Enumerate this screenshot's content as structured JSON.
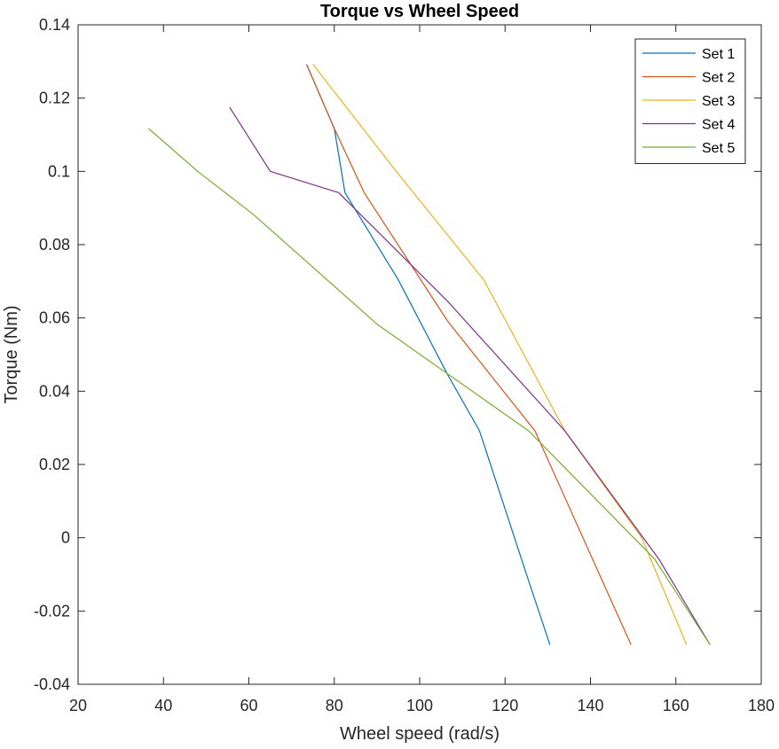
{
  "chart_data": {
    "type": "line",
    "title": "Torque vs Wheel Speed",
    "xlabel": "Wheel speed (rad/s)",
    "ylabel": "Torque (Nm)",
    "xlim": [
      20,
      180
    ],
    "ylim": [
      -0.04,
      0.14
    ],
    "xticks": [
      20,
      40,
      60,
      80,
      100,
      120,
      140,
      160,
      180
    ],
    "yticks": [
      -0.04,
      -0.02,
      0,
      0.02,
      0.04,
      0.06,
      0.08,
      0.1,
      0.12,
      0.14
    ],
    "xtick_labels": [
      "20",
      "40",
      "60",
      "80",
      "100",
      "120",
      "140",
      "160",
      "180"
    ],
    "ytick_labels": [
      "-0.04",
      "-0.02",
      "0",
      "0.02",
      "0.04",
      "0.06",
      "0.08",
      "0.1",
      "0.12",
      "0.14"
    ],
    "grid": false,
    "legend_position": "top-right",
    "series": [
      {
        "name": "Set 1",
        "color": "#0072BD",
        "x": [
          73.5,
          80,
          82.5,
          95,
          106.5,
          114,
          125.5,
          130.5
        ],
        "y": [
          0.1292,
          0.1117,
          0.0942,
          0.0704,
          0.0446,
          0.0292,
          -0.0117,
          -0.0292
        ]
      },
      {
        "name": "Set 2",
        "color": "#D95319",
        "x": [
          73.5,
          80,
          87,
          106.5,
          127,
          149.5
        ],
        "y": [
          0.1292,
          0.1117,
          0.0942,
          0.0592,
          0.0292,
          -0.0292
        ]
      },
      {
        "name": "Set 3",
        "color": "#EDB120",
        "x": [
          75,
          94.5,
          115,
          134,
          152,
          162.5
        ],
        "y": [
          0.1292,
          0.1,
          0.0704,
          0.0292,
          0.0,
          -0.0292
        ]
      },
      {
        "name": "Set 4",
        "color": "#7E2F8E",
        "x": [
          55.5,
          65,
          81,
          106.5,
          134,
          156,
          168
        ],
        "y": [
          0.1175,
          0.1,
          0.0942,
          0.0646,
          0.0292,
          -0.0058,
          -0.0292
        ]
      },
      {
        "name": "Set 5",
        "color": "#77AC30",
        "x": [
          36.5,
          48,
          61,
          90,
          125.5,
          155,
          168
        ],
        "y": [
          0.1117,
          0.1,
          0.0883,
          0.0583,
          0.0292,
          -0.0058,
          -0.0292
        ]
      }
    ]
  }
}
